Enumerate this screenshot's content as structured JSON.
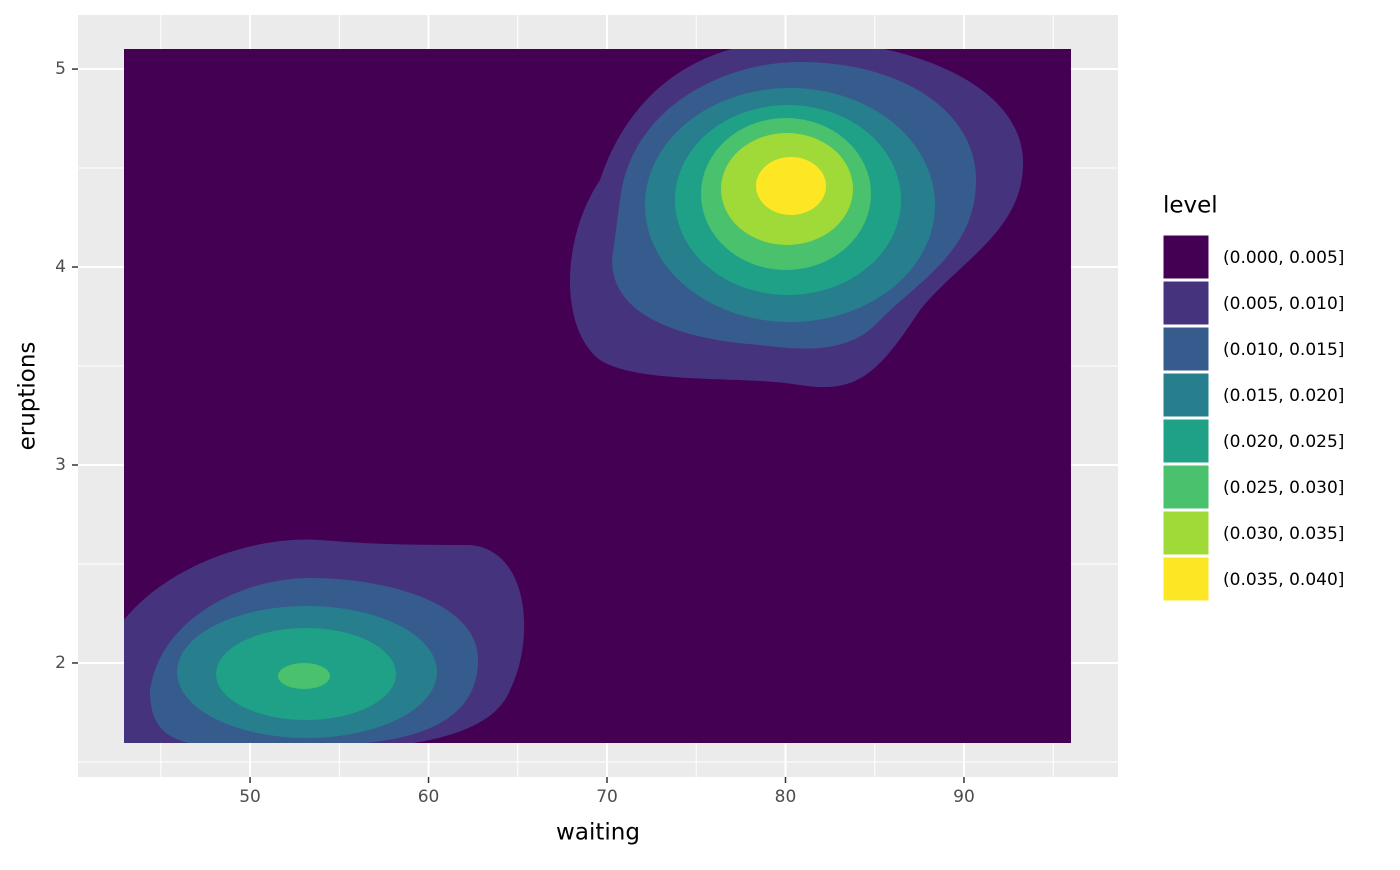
{
  "chart_data": {
    "type": "contour",
    "x_label": "waiting",
    "y_label": "eruptions",
    "legend_title": "level",
    "series": [
      {
        "name": "(0.000, 0.005]",
        "color": "#440154"
      },
      {
        "name": "(0.005, 0.010]",
        "color": "#46337E"
      },
      {
        "name": "(0.010, 0.015]",
        "color": "#365C8D"
      },
      {
        "name": "(0.015, 0.020]",
        "color": "#277F8E"
      },
      {
        "name": "(0.020, 0.025]",
        "color": "#1FA187"
      },
      {
        "name": "(0.025, 0.030]",
        "color": "#4AC16D"
      },
      {
        "name": "(0.030, 0.035]",
        "color": "#A0DA39"
      },
      {
        "name": "(0.035, 0.040]",
        "color": "#FDE725"
      }
    ],
    "xlim": [
      40.36,
      98.63
    ],
    "ylim": [
      1.424,
      5.273
    ],
    "xticks": [
      50,
      60,
      70,
      80,
      90
    ],
    "yticks": [
      2,
      3,
      4,
      5
    ],
    "xminor": [
      45,
      55,
      65,
      75,
      85,
      95
    ],
    "yminor": [
      1.5,
      2.5,
      3.5,
      4.5
    ],
    "grid": true
  }
}
